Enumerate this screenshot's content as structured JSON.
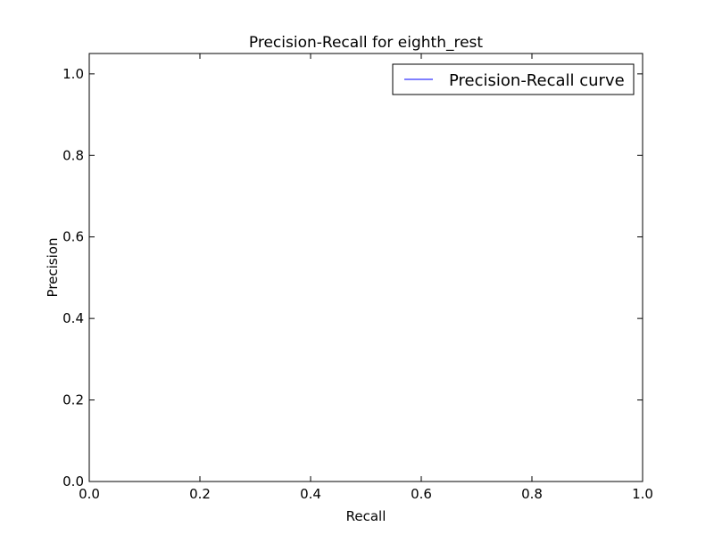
{
  "chart_data": {
    "type": "line",
    "title": "Precision-Recall for eighth_rest",
    "xlabel": "Recall",
    "ylabel": "Precision",
    "xlim": [
      0.0,
      1.0
    ],
    "ylim": [
      0.0,
      1.05
    ],
    "xticks": [
      0.0,
      0.2,
      0.4,
      0.6,
      0.8,
      1.0
    ],
    "yticks": [
      0.0,
      0.2,
      0.4,
      0.6,
      0.8,
      1.0
    ],
    "xtick_labels": [
      "0.0",
      "0.2",
      "0.4",
      "0.6",
      "0.8",
      "1.0"
    ],
    "ytick_labels": [
      "0.0",
      "0.2",
      "0.4",
      "0.6",
      "0.8",
      "1.0"
    ],
    "grid": false,
    "legend_position": "top-right",
    "series": [
      {
        "name": "Precision-Recall curve",
        "color": "#0000ff",
        "x": [],
        "y": []
      }
    ]
  }
}
